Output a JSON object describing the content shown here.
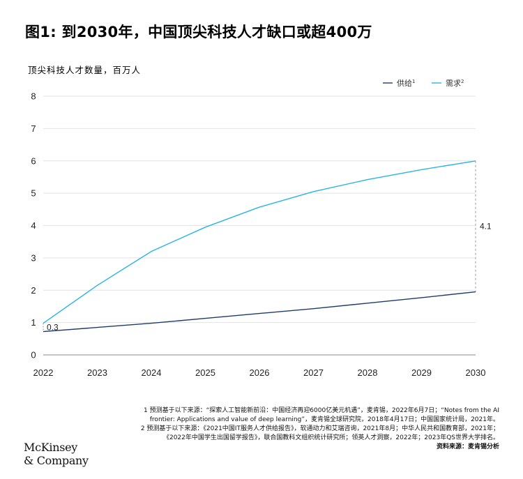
{
  "title": "图1: 到2030年，中国顶尖科技人才缺口或超400万",
  "ylabel": "顶尖科技人才数量，百万人",
  "chart_data": {
    "type": "line",
    "x": [
      "2022",
      "2023",
      "2024",
      "2025",
      "2026",
      "2027",
      "2028",
      "2029",
      "2030"
    ],
    "ylim": [
      0,
      8
    ],
    "yticks": [
      "0",
      "1",
      "2",
      "3",
      "4",
      "5",
      "6",
      "7",
      "8"
    ],
    "grid": true,
    "legend_position": "top-right",
    "series": [
      {
        "name": "供给",
        "sup": "1",
        "color": "#1f3a6e",
        "values": [
          0.72,
          0.85,
          0.98,
          1.13,
          1.28,
          1.43,
          1.6,
          1.77,
          1.95
        ]
      },
      {
        "name": "需求",
        "sup": "2",
        "color": "#29b4e8",
        "values": [
          0.98,
          2.15,
          3.2,
          3.95,
          4.57,
          5.05,
          5.42,
          5.73,
          6.0
        ]
      }
    ],
    "annotations": [
      {
        "label": "0.3",
        "x": "2022"
      },
      {
        "label": "4.1",
        "x": "2030"
      }
    ]
  },
  "footnotes": [
    "1 预测基于以下来源：“探索人工智能新前沿：中国经济再迎6000亿美元机遇”，麦肯锡，2022年6月7日；“Notes from the AI frontier: Applications and value of deep learning”，麦肯锡全球研究院，2018年4月17日；中国国家统计局，2021年。",
    "2 预测基于以下来源：《2021中国IT服务人才供给报告》，软通动力和艾瑞咨询，2021年8月；中华人民共和国教育部，2021年；《2022年中国学生出国留学报告》，联合国教科文组织统计研究所；领英人才洞察，2022年；2023年QS世界大学排名。"
  ],
  "source": "资料来源：麦肯锡分析",
  "logo": {
    "line1": "McKinsey",
    "line2": "& Company"
  }
}
